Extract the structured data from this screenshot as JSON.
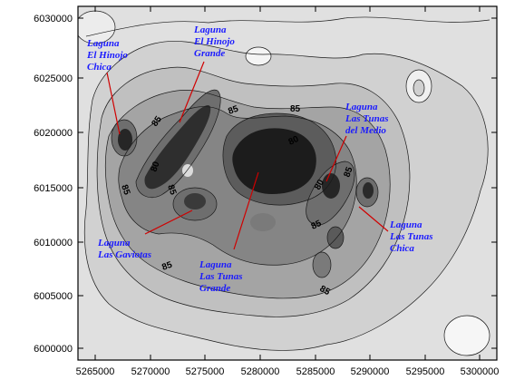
{
  "map": {
    "x_ticks": [
      "5265000",
      "5270000",
      "5275000",
      "5280000",
      "5285000",
      "5290000",
      "5295000",
      "5300000"
    ],
    "y_ticks": [
      "6030000",
      "6025000",
      "6020000",
      "6015000",
      "6010000",
      "6005000",
      "6000000"
    ],
    "contour_labels": [
      "85",
      "85",
      "85",
      "85",
      "80",
      "80",
      "85",
      "85",
      "85",
      "85",
      "80",
      "85"
    ],
    "lakes": [
      {
        "lines": [
          "Laguna",
          "El Hinojo",
          "Chica"
        ]
      },
      {
        "lines": [
          "Laguna",
          "El Hinojo",
          "Grande"
        ]
      },
      {
        "lines": [
          "Laguna",
          "Las Tunas",
          "del Medio"
        ]
      },
      {
        "lines": [
          "Laguna",
          "Las Gaviotas"
        ]
      },
      {
        "lines": [
          "Laguna",
          "Las Tunas",
          "Grande"
        ]
      },
      {
        "lines": [
          "Laguna",
          "Las Tunas",
          "Chica"
        ]
      }
    ],
    "colors": {
      "frame": "#000000",
      "label": "#1a1aff",
      "leader": "#d00000"
    }
  }
}
